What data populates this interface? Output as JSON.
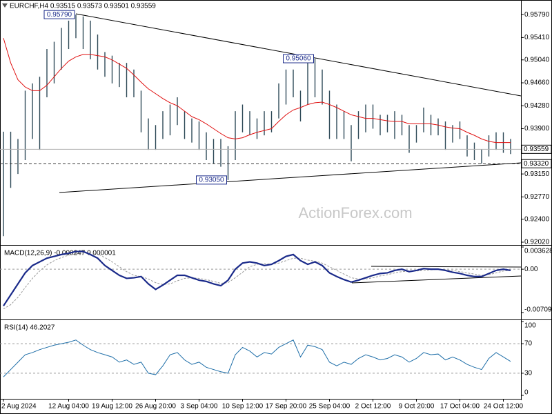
{
  "watermark": "ActionForex.com",
  "chart_data": [
    {
      "type": "hilo",
      "title": "EURCHF,H4  0.93515 0.93573 0.93501 0.93559",
      "color": "#2e4a57",
      "categories": [
        "2 Aug 2024",
        null,
        null,
        null,
        null,
        null,
        null,
        null,
        null,
        "12 Aug 04:00",
        null,
        null,
        null,
        null,
        null,
        "19 Aug 12:00",
        null,
        null,
        null,
        null,
        null,
        "26 Aug 20:00",
        null,
        null,
        null,
        null,
        null,
        "3 Sep 04:00",
        null,
        null,
        null,
        null,
        null,
        "10 Sep 12:00",
        null,
        null,
        null,
        null,
        null,
        "17 Sep 20:00",
        null,
        null,
        null,
        null,
        null,
        "25 Sep 04:00",
        null,
        null,
        null,
        null,
        null,
        "2 Oct 12:00",
        null,
        null,
        null,
        null,
        null,
        "9 Oct 20:00",
        null,
        null,
        null,
        null,
        null,
        "17 Oct 04:00",
        null,
        null,
        null,
        null,
        null,
        "24 Oct 12:00",
        null
      ],
      "high": [
        0.9385,
        0.9385,
        0.9373,
        0.9453,
        0.9465,
        0.9476,
        0.9522,
        0.9534,
        0.9557,
        0.9569,
        0.9579,
        0.9576,
        0.9569,
        0.9546,
        0.9517,
        0.9511,
        0.9499,
        0.9499,
        0.9488,
        0.9453,
        0.9407,
        0.9396,
        0.9419,
        0.943,
        0.9442,
        0.9419,
        0.9407,
        0.9402,
        0.9384,
        0.9373,
        0.9373,
        0.9361,
        0.9419,
        0.943,
        0.9419,
        0.9407,
        0.9419,
        0.9419,
        0.9465,
        0.9488,
        0.9488,
        0.9453,
        0.9505,
        0.9506,
        0.9488,
        0.9453,
        0.943,
        0.9419,
        0.9396,
        0.9419,
        0.943,
        0.943,
        0.9413,
        0.9413,
        0.9419,
        0.9413,
        0.9396,
        0.9396,
        0.9425,
        0.9413,
        0.9407,
        0.9402,
        0.9396,
        0.9402,
        0.9379,
        0.9367,
        0.9356,
        0.9379,
        0.9384,
        0.9384,
        0.9373
      ],
      "low": [
        0.9212,
        0.9292,
        0.9315,
        0.9338,
        0.9373,
        0.9355,
        0.9442,
        0.9465,
        0.9488,
        0.9522,
        0.954,
        0.9522,
        0.9505,
        0.9488,
        0.9476,
        0.9465,
        0.9459,
        0.9442,
        0.9442,
        0.9384,
        0.9355,
        0.9355,
        0.9373,
        0.9379,
        0.9396,
        0.9373,
        0.9367,
        0.9355,
        0.9338,
        0.9332,
        0.9327,
        0.9305,
        0.9338,
        0.9384,
        0.9379,
        0.9373,
        0.9379,
        0.9384,
        0.9407,
        0.943,
        0.9442,
        0.9402,
        0.943,
        0.9442,
        0.943,
        0.9373,
        0.9373,
        0.9373,
        0.9336,
        0.9373,
        0.9384,
        0.939,
        0.9379,
        0.9384,
        0.9373,
        0.9379,
        0.935,
        0.9367,
        0.9384,
        0.9379,
        0.9379,
        0.9355,
        0.9367,
        0.9373,
        0.9344,
        0.9338,
        0.9332,
        0.9344,
        0.9355,
        0.935,
        0.9348
      ],
      "overlay": {
        "color": "#e01010",
        "values": [
          0.954,
          0.9499,
          0.9471,
          0.9459,
          0.9453,
          0.9453,
          0.9462,
          0.9476,
          0.949,
          0.9502,
          0.9509,
          0.9513,
          0.9513,
          0.9511,
          0.9509,
          0.9504,
          0.9497,
          0.949,
          0.9479,
          0.9467,
          0.9456,
          0.9448,
          0.944,
          0.9433,
          0.9428,
          0.9419,
          0.941,
          0.9405,
          0.9398,
          0.939,
          0.9382,
          0.9375,
          0.9373,
          0.9375,
          0.938,
          0.9384,
          0.9387,
          0.939,
          0.9402,
          0.9413,
          0.9421,
          0.9425,
          0.943,
          0.9433,
          0.9434,
          0.943,
          0.9425,
          0.9419,
          0.9413,
          0.941,
          0.9407,
          0.9407,
          0.9405,
          0.9403,
          0.9402,
          0.9402,
          0.9398,
          0.9398,
          0.9398,
          0.9398,
          0.9396,
          0.9393,
          0.9391,
          0.939,
          0.9384,
          0.9379,
          0.9373,
          0.9369,
          0.9367,
          0.9367,
          0.9367
        ]
      },
      "ylim": [
        0.91974,
        0.96032
      ],
      "yticks": [
        {
          "value": 0.9579,
          "label": "0.95790"
        },
        {
          "value": 0.9541,
          "label": "0.95410"
        },
        {
          "value": 0.9504,
          "label": "0.95040"
        },
        {
          "value": 0.9466,
          "label": "0.94660"
        },
        {
          "value": 0.9428,
          "label": "0.94280"
        },
        {
          "value": 0.939,
          "label": "0.93900"
        },
        {
          "value": 0.9315,
          "label": "0.93150"
        },
        {
          "value": 0.9277,
          "label": "0.92770"
        },
        {
          "value": 0.924,
          "label": "0.92400"
        },
        {
          "value": 0.9202,
          "label": "0.92020"
        }
      ],
      "grid": false,
      "price_lines": [
        {
          "value": 0.93559,
          "label": "0.93559",
          "style": "solid"
        },
        {
          "value": 0.9332,
          "label": "0.93320",
          "style": "dashed"
        }
      ],
      "annotations": [
        {
          "bar": 10,
          "value": 0.9579,
          "label": "0.95790"
        },
        {
          "bar": 43,
          "value": 0.9506,
          "label": "0.95060"
        },
        {
          "bar": 31,
          "value": 0.9305,
          "label": "0.93050"
        }
      ]
    },
    {
      "type": "line",
      "title": "MACD(12,26,9) -0.000247 0.000001",
      "series": [
        {
          "color": "#1a2a8a",
          "values": [
            -0.006,
            -0.0042,
            -0.0024,
            -0.0006,
            0.0006,
            0.0012,
            0.0018,
            0.0021,
            0.0024,
            0.0026,
            0.0029,
            0.0029,
            0.0024,
            0.0018,
            0.0006,
            -0.0002,
            -0.001,
            -0.0015,
            -0.0014,
            -0.0012,
            -0.0024,
            -0.0033,
            -0.0026,
            -0.0018,
            -0.001,
            -0.001,
            -0.0014,
            -0.0018,
            -0.002,
            -0.0024,
            -0.0027,
            -0.0018,
            0.0,
            0.001,
            0.0012,
            0.001,
            0.0006,
            0.0008,
            0.0014,
            0.0021,
            0.0024,
            0.0014,
            0.0008,
            0.0012,
            0.0006,
            -0.0006,
            -0.0012,
            -0.0017,
            -0.0021,
            -0.0018,
            -0.0014,
            -0.001,
            -0.0007,
            -0.0006,
            -0.0002,
            0.0,
            -0.0004,
            -0.0002,
            0.0001,
            0.0,
            0.0,
            -0.0002,
            -0.0005,
            -0.0007,
            -0.001,
            -0.0012,
            -0.0012,
            -0.0007,
            -0.0002,
            0.0,
            -0.0002
          ]
        },
        {
          "color": "#9a9a9a",
          "values": [
            -0.0065,
            -0.0058,
            -0.0046,
            -0.003,
            -0.0015,
            -0.0003,
            0.0007,
            0.0014,
            0.0019,
            0.0023,
            0.0025,
            0.0027,
            0.0027,
            0.0025,
            0.0019,
            0.0012,
            0.0004,
            -0.0004,
            -0.001,
            -0.0012,
            -0.0016,
            -0.0022,
            -0.0025,
            -0.0024,
            -0.0019,
            -0.0015,
            -0.0014,
            -0.0015,
            -0.0017,
            -0.002,
            -0.0023,
            -0.0022,
            -0.0014,
            -0.0005,
            0.0004,
            0.0008,
            0.0009,
            0.0008,
            0.001,
            0.0014,
            0.0018,
            0.0018,
            0.0015,
            0.0013,
            0.001,
            0.0004,
            -0.0002,
            -0.0008,
            -0.0014,
            -0.0016,
            -0.0016,
            -0.0014,
            -0.0011,
            -0.0009,
            -0.0006,
            -0.0004,
            -0.0003,
            -0.0003,
            -0.0002,
            -0.0001,
            0.0,
            -0.0001,
            -0.0002,
            -0.0004,
            -0.0006,
            -0.0008,
            -0.001,
            -0.0009,
            -0.0006,
            -0.0003,
            -0.0002
          ]
        }
      ],
      "ylim": [
        -0.007093,
        0.003628
      ],
      "yticks": [
        0.003628,
        {
          "value": 0,
          "label": "0.00"
        },
        -0.007093
      ],
      "grid": "dashed"
    },
    {
      "type": "line",
      "title": "RSI(14) 46.2027",
      "color": "#1e6ea8",
      "values": [
        25,
        35,
        45,
        55,
        58,
        62,
        65,
        68,
        70,
        72,
        75,
        68,
        62,
        58,
        55,
        52,
        45,
        48,
        42,
        45,
        30,
        28,
        40,
        55,
        58,
        48,
        42,
        45,
        38,
        35,
        32,
        30,
        55,
        65,
        60,
        52,
        58,
        56,
        65,
        70,
        75,
        52,
        68,
        66,
        62,
        45,
        40,
        45,
        42,
        50,
        55,
        52,
        48,
        50,
        55,
        52,
        45,
        50,
        58,
        55,
        56,
        48,
        52,
        48,
        42,
        38,
        35,
        50,
        58,
        52,
        46
      ],
      "ylim": [
        0,
        100
      ],
      "yticks": [
        0,
        30,
        70,
        100
      ],
      "grid": "dashed"
    }
  ]
}
